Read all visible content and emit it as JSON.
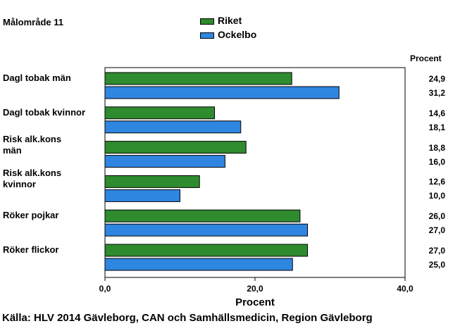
{
  "chart_data": {
    "type": "bar",
    "orientation": "horizontal",
    "title": "Målområde 11",
    "categories": [
      "Dagl tobak män",
      "Dagl tobak kvinnor",
      "Risk alk.kons\nmän",
      "Risk alk.kons\nkvinnor",
      "Röker pojkar",
      "Röker flickor"
    ],
    "series": [
      {
        "name": "Riket",
        "color": "#2e8b2e",
        "values": [
          24.9,
          14.6,
          18.8,
          12.6,
          26.0,
          27.0
        ],
        "labels": [
          "24,9",
          "14,6",
          "18,8",
          "12,6",
          "26,0",
          "27,0"
        ]
      },
      {
        "name": "Ockelbo",
        "color": "#2f86e0",
        "values": [
          31.2,
          18.1,
          16.0,
          10.0,
          27.0,
          25.0
        ],
        "labels": [
          "31,2",
          "18,1",
          "16,0",
          "10,0",
          "27,0",
          "25,0"
        ]
      }
    ],
    "value_column_header": "Procent",
    "xlabel": "Procent",
    "xlim": [
      0,
      40
    ],
    "xticks": [
      0,
      20,
      40
    ],
    "xtick_labels": [
      "0,0",
      "20,0",
      "40,0"
    ],
    "legend_position": "top-center",
    "grid": false,
    "source": "Källa: HLV 2014 Gävleborg, CAN och Samhällsmedicin, Region Gävleborg"
  }
}
